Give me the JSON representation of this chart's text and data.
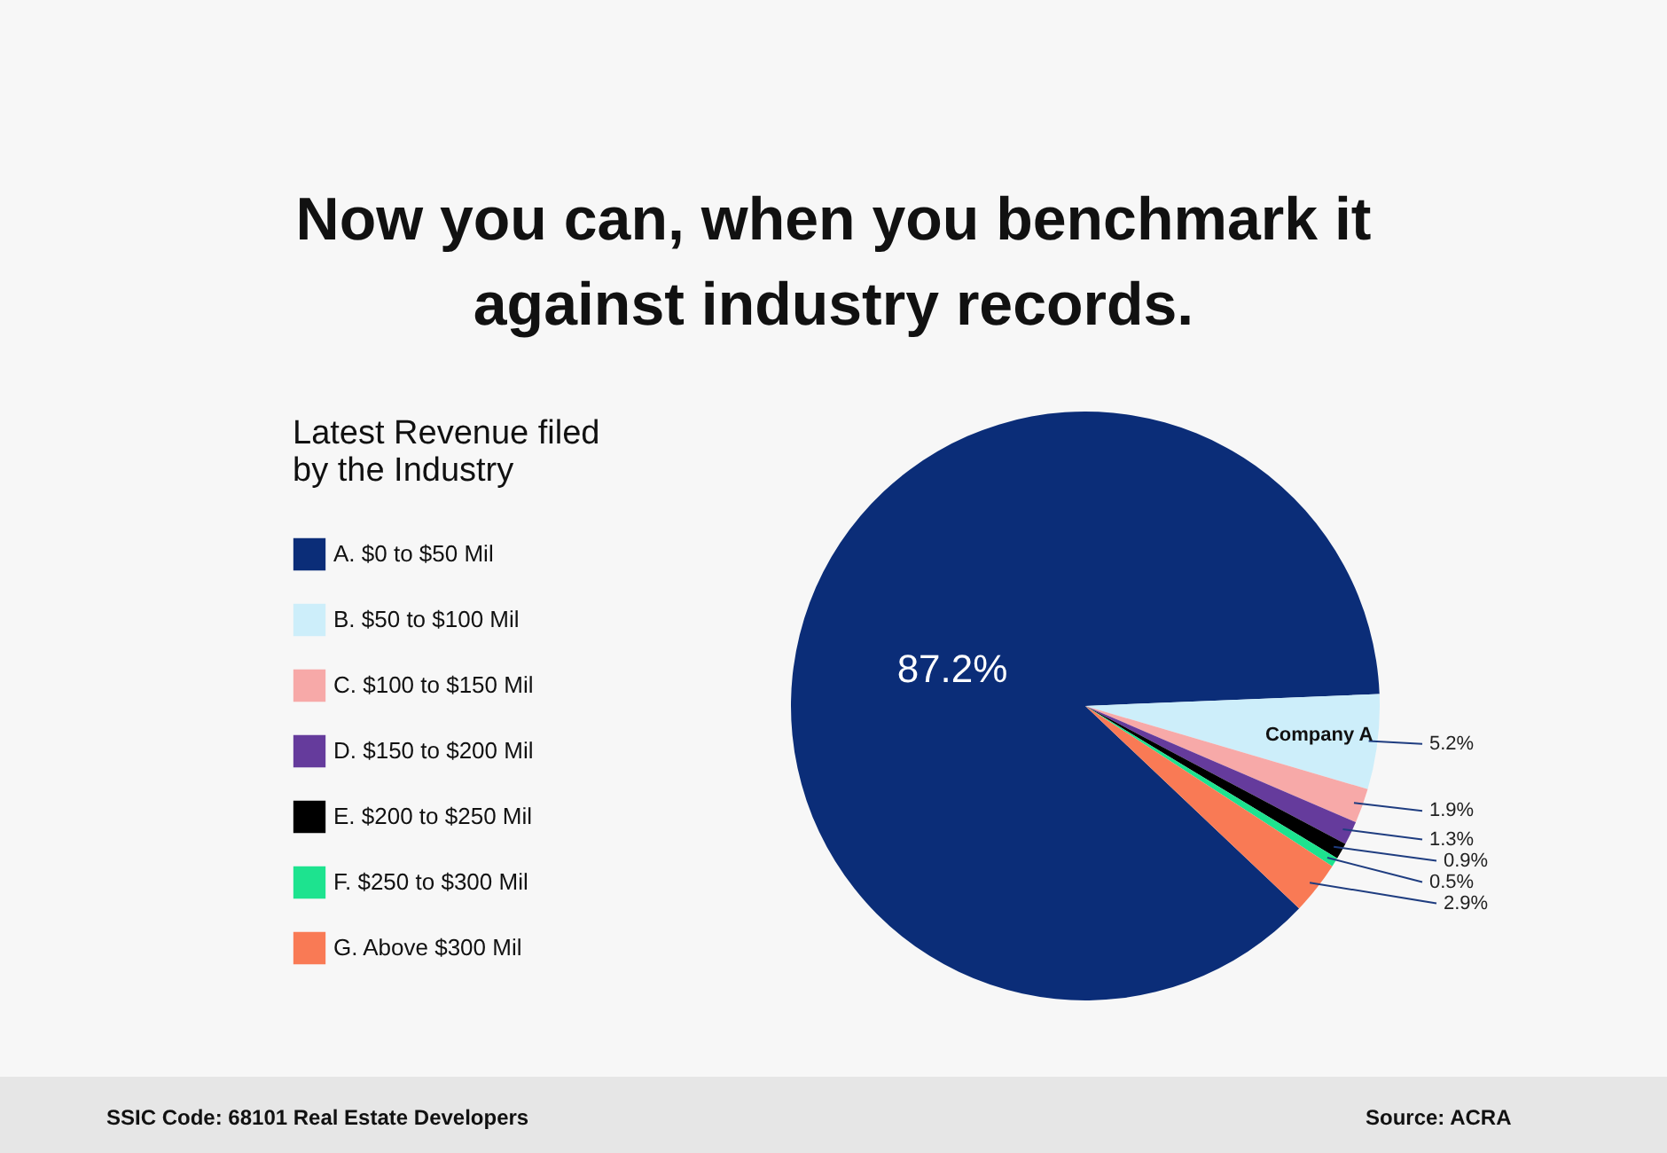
{
  "chart_data": {
    "type": "pie",
    "title": "Now you can, when you benchmark it against industry records.",
    "legend_title": "Latest Revenue filed by the Industry",
    "legend": "left",
    "categories": [
      "A. $0 to $50 Mil",
      "B. $50 to $100 Mil",
      "C. $100 to $150 Mil",
      "D. $150 to $200 Mil",
      "E. $200 to $250 Mil",
      "F. $250 to $300 Mil",
      "G. Above $300 Mil"
    ],
    "values": [
      87.2,
      5.2,
      1.9,
      1.3,
      0.9,
      0.5,
      2.9
    ],
    "colors": [
      "#0b2d78",
      "#cdeefa",
      "#f7a9a8",
      "#653b9c",
      "#000000",
      "#1de38f",
      "#f97a55"
    ],
    "value_labels": [
      "87.2%",
      "5.2%",
      "1.9%",
      "1.3%",
      "0.9%",
      "0.5%",
      "2.9%"
    ],
    "annotations": [
      {
        "text": "Company A",
        "x": "B. $50 to $100 Mil"
      },
      "SSIC Code: 68101 Real Estate Developers",
      "Source: ACRA"
    ]
  }
}
